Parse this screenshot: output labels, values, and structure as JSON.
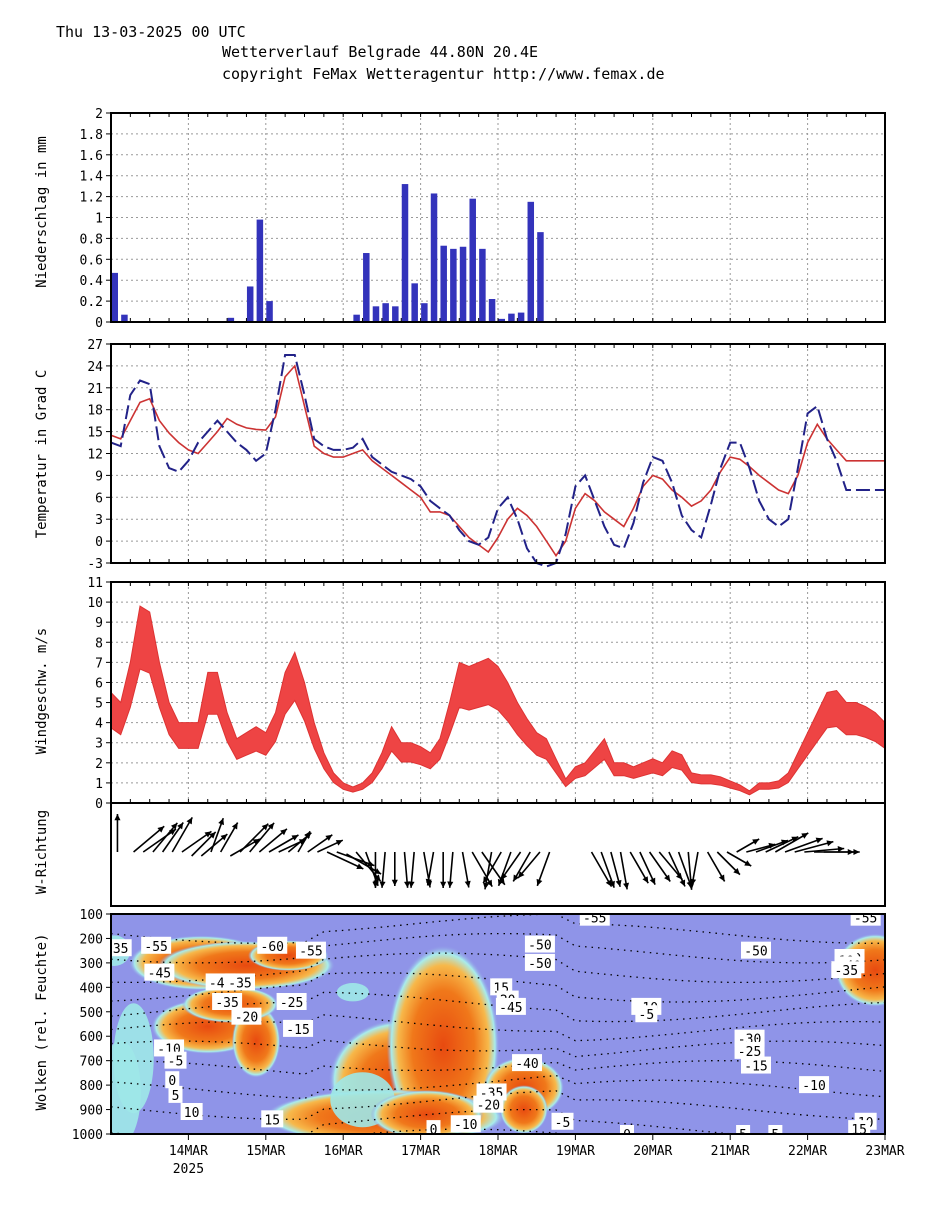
{
  "header": {
    "date_line": "Thu 13-03-2025 00 UTC",
    "title_line": "Wetterverlauf Belgrade  44.80N 20.4E",
    "copyright_line": "copyright FeMax Wetteragentur http://www.femax.de"
  },
  "x_axis": {
    "labels": [
      "14MAR",
      "15MAR",
      "16MAR",
      "17MAR",
      "18MAR",
      "19MAR",
      "20MAR",
      "21MAR",
      "22MAR",
      "23MAR"
    ],
    "year_label": "2025",
    "start_hour": 0,
    "end_hour": 240
  },
  "colors": {
    "precip_bar": "#3333bb",
    "temp_line": "#cc3333",
    "dewpoint_line": "#222288",
    "wind_band": "#ee4444",
    "cloud_bg": "#8f94e8",
    "cloud_mid": "#9fe8e8",
    "cloud_high": "#f5a020",
    "cloud_max": "#e84a10"
  },
  "chart_data": [
    {
      "type": "bar",
      "title": "",
      "ylabel": "Niederschlag in mm",
      "ylim": [
        0,
        2
      ],
      "yticks": [
        "0",
        "0.2",
        "0.4",
        "0.6",
        "0.8",
        "1",
        "1.2",
        "1.4",
        "1.6",
        "1.8",
        "2"
      ],
      "x_hours": [
        0,
        3,
        6,
        9,
        12,
        15,
        18,
        21,
        24,
        27,
        30,
        33,
        36,
        39,
        42,
        45,
        48,
        51,
        54,
        57,
        60,
        63,
        66,
        69,
        72,
        75,
        78,
        81,
        84,
        87,
        90,
        93,
        96,
        99,
        102,
        105,
        108,
        111,
        114,
        117,
        120,
        123,
        126,
        129,
        132
      ],
      "values": [
        0.47,
        0.07,
        0,
        0,
        0,
        0,
        0,
        0,
        0,
        0,
        0,
        0,
        0.04,
        0,
        0.34,
        0.98,
        0.2,
        0,
        0,
        0,
        0,
        0,
        0,
        0,
        0,
        0.07,
        0.66,
        0.15,
        0.18,
        0.15,
        1.32,
        0.37,
        0.18,
        1.23,
        0.73,
        0.7,
        0.72,
        1.18,
        0.7,
        0.22,
        0.03,
        0.08,
        0.09,
        1.15,
        0.86
      ]
    },
    {
      "type": "line",
      "ylabel": "Temperatur in Grad C",
      "ylim": [
        -3,
        27
      ],
      "yticks": [
        "-3",
        "0",
        "3",
        "6",
        "9",
        "12",
        "15",
        "18",
        "21",
        "24",
        "27"
      ],
      "x_hours": [
        0,
        3,
        6,
        9,
        12,
        15,
        18,
        21,
        24,
        27,
        30,
        33,
        36,
        39,
        42,
        45,
        48,
        51,
        54,
        57,
        60,
        63,
        66,
        69,
        72,
        75,
        78,
        81,
        84,
        87,
        90,
        93,
        96,
        99,
        102,
        105,
        108,
        111,
        114,
        117,
        120,
        123,
        126,
        129,
        132,
        135,
        138,
        141,
        144,
        147,
        150,
        153,
        156,
        159,
        162,
        165,
        168,
        171,
        174,
        177,
        180,
        183,
        186,
        189,
        192,
        195,
        198,
        201,
        204,
        207,
        210,
        213,
        216,
        219,
        222,
        225,
        228,
        231,
        234,
        237,
        240
      ],
      "series": [
        {
          "name": "Temperatur",
          "style": "solid",
          "values": [
            14.5,
            14.0,
            16.5,
            19.0,
            19.5,
            16.5,
            14.8,
            13.5,
            12.5,
            12.0,
            13.5,
            15.0,
            16.8,
            16.0,
            15.5,
            15.3,
            15.2,
            17.0,
            22.5,
            24.0,
            18.5,
            13.0,
            12.0,
            11.5,
            11.5,
            12.0,
            12.5,
            11.0,
            10.0,
            9.0,
            8.0,
            7.0,
            6.0,
            4.0,
            4.0,
            3.5,
            2.0,
            0.5,
            -0.5,
            -1.5,
            0.5,
            3.0,
            4.5,
            3.5,
            2.0,
            0.0,
            -2.0,
            0.0,
            4.5,
            6.5,
            5.5,
            4.0,
            3.0,
            2.0,
            4.5,
            7.5,
            9.0,
            8.5,
            7.0,
            6.0,
            4.8,
            5.5,
            7.0,
            9.5,
            11.5,
            11.2,
            10.2,
            9.0,
            8.0,
            7.0,
            6.5,
            9.0,
            13.5,
            16.0,
            14.0,
            12.5,
            11.0,
            11.0,
            11.0,
            11.0,
            11.0
          ]
        },
        {
          "name": "Taupunkt",
          "style": "dashed",
          "values": [
            13.5,
            13.0,
            20.0,
            22.0,
            21.5,
            13.0,
            10.0,
            9.5,
            11.0,
            13.5,
            15.0,
            16.5,
            15.0,
            13.5,
            12.5,
            11.0,
            12.0,
            18.0,
            25.5,
            25.5,
            20.0,
            14.0,
            13.0,
            12.5,
            12.5,
            12.8,
            14.0,
            11.5,
            10.5,
            9.5,
            9.0,
            8.5,
            7.5,
            5.5,
            4.5,
            3.5,
            1.5,
            0.0,
            -0.5,
            0.5,
            4.5,
            6.0,
            3.0,
            -1.0,
            -3.0,
            -3.5,
            -3.0,
            1.0,
            7.5,
            9.0,
            5.5,
            2.0,
            -0.5,
            -1.0,
            2.5,
            8.0,
            11.5,
            11.0,
            8.0,
            3.5,
            1.5,
            0.5,
            5.0,
            10.0,
            13.5,
            13.5,
            10.0,
            5.5,
            3.0,
            2.0,
            3.0,
            10.0,
            17.5,
            18.5,
            14.0,
            11.0,
            7.0,
            7.0,
            7.0,
            7.0,
            7.0
          ]
        }
      ]
    },
    {
      "type": "area",
      "ylabel": "Windgeschw. m/s",
      "ylim": [
        0,
        11
      ],
      "yticks": [
        "0",
        "1",
        "2",
        "3",
        "4",
        "5",
        "6",
        "7",
        "8",
        "9",
        "10",
        "11"
      ],
      "x_hours": [
        0,
        3,
        6,
        9,
        12,
        15,
        18,
        21,
        24,
        27,
        30,
        33,
        36,
        39,
        42,
        45,
        48,
        51,
        54,
        57,
        60,
        63,
        66,
        69,
        72,
        75,
        78,
        81,
        84,
        87,
        90,
        93,
        96,
        99,
        102,
        105,
        108,
        111,
        114,
        117,
        120,
        123,
        126,
        129,
        132,
        135,
        138,
        141,
        144,
        147,
        150,
        153,
        156,
        159,
        162,
        165,
        168,
        171,
        174,
        177,
        180,
        183,
        186,
        189,
        192,
        195,
        198,
        201,
        204,
        207,
        210,
        213,
        216,
        219,
        222,
        225,
        228,
        231,
        234,
        237,
        240
      ],
      "upper": [
        5.5,
        5.0,
        7.0,
        9.8,
        9.5,
        7.0,
        5.0,
        4.0,
        4.0,
        4.0,
        6.5,
        6.5,
        4.5,
        3.2,
        3.5,
        3.8,
        3.5,
        4.5,
        6.5,
        7.5,
        6.0,
        4.0,
        2.5,
        1.5,
        1.0,
        0.8,
        1.0,
        1.5,
        2.5,
        3.8,
        3.0,
        3.0,
        2.8,
        2.5,
        3.2,
        5.0,
        7.0,
        6.8,
        7.0,
        7.2,
        6.8,
        6.0,
        5.0,
        4.2,
        3.5,
        3.2,
        2.2,
        1.2,
        1.8,
        2.0,
        2.6,
        3.2,
        2.0,
        2.0,
        1.8,
        2.0,
        2.2,
        2.0,
        2.6,
        2.4,
        1.5,
        1.4,
        1.4,
        1.3,
        1.1,
        0.9,
        0.6,
        1.0,
        1.0,
        1.1,
        1.5,
        2.5,
        3.5,
        4.5,
        5.5,
        5.6,
        5.0,
        5.0,
        4.8,
        4.5,
        4.0
      ]
    },
    {
      "type": "heatmap",
      "ylabel": "Wolken (rel. Feuchte)",
      "ylim": [
        1000,
        100
      ],
      "yticks": [
        "100",
        "200",
        "300",
        "400",
        "500",
        "600",
        "700",
        "800",
        "900",
        "1000"
      ],
      "contour_labels": [
        "35",
        "-55",
        "-60",
        "-55",
        "-50",
        "-50",
        "-55",
        "-50",
        "-55",
        "-60",
        "-45",
        "-40",
        "-35",
        "-35",
        "-25",
        "-20",
        "-15",
        "-10",
        "-5",
        "0",
        "5",
        "10",
        "15",
        "20",
        "-45",
        "-40",
        "-35",
        "-20",
        "-10",
        "-5",
        "-30",
        "-25",
        "-15",
        "-10",
        "-5",
        "0",
        "0",
        "5",
        "10",
        "-40",
        "-35",
        "-10",
        "15",
        "10",
        "15",
        "5"
      ]
    }
  ],
  "wind_direction": {
    "ylabel": "W-Richtung"
  }
}
